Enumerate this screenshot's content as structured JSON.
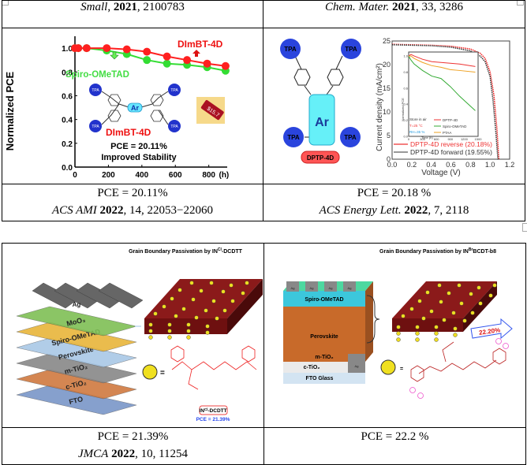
{
  "table1": {
    "header": [
      {
        "journal": "Small",
        "year": "2021",
        "rest": ", 2100783",
        "sep": ", "
      },
      {
        "journal": "Chem. Mater.",
        "year": "2021",
        "rest": ", 33, 3286",
        "sep": " "
      }
    ],
    "footer": [
      {
        "pce": "PCE = 20.11%",
        "journal": "ACS AMI",
        "year": "2022",
        "rest": ", 14, 22053−22060"
      },
      {
        "pce": "PCE = 20.18 %",
        "journal": "ACS Energy Lett.",
        "year": "2022",
        "rest": ", 7, 2118"
      }
    ]
  },
  "table2": {
    "footer": [
      {
        "pce": "PCE = 21.39%",
        "journal": "JMCA",
        "year": "2022",
        "rest": ", 10, 11254"
      },
      {
        "pce": "PCE = 22.2 %"
      }
    ]
  },
  "fig1": {
    "ylabel": "Normalized PCE",
    "series_labels": {
      "dimbt": "DImBT-4D",
      "spiro": "Spiro-OMeTAD"
    },
    "molecule_label": "DImBT-4D",
    "core_label": "Ar",
    "group_label": "TPA",
    "pce_text": "PCE = 20.11%",
    "stability_text": "Improved Stability",
    "price_tag": "$15.7",
    "colors": {
      "dimbt": "#ff2020",
      "spiro": "#33dd33"
    }
  },
  "fig2": {
    "group_label": "TPA",
    "core_label": "Ar",
    "molecule_badge": "DPTP-4D",
    "xlabel": "Voltage (V)",
    "ylabel": "Current density (mA/cm²)",
    "legend": [
      "DPTP-4D reverse (20.18%)",
      "DPTP-4D forward (19.55%)"
    ],
    "inset": {
      "ylabel": "Normalized PCE",
      "xlabel": "Time (h)",
      "conditions": [
        "Store in air",
        "T=25 °C",
        "RH=35 %"
      ],
      "legend": [
        "DPTP-4D",
        "Spiro-OMeTAD",
        "PTAA"
      ]
    }
  },
  "fig3": {
    "title": "Grain Boundary Passivation by IN",
    "title_sup": "Cl",
    "title_tail": "-DCDTT",
    "layers": [
      "Ag",
      "MoO₃",
      "Spiro-OMeTAD",
      "Perovskite",
      "m-TiO₂",
      "c-TiO₂",
      "FTO"
    ],
    "molecule_label": "IN",
    "molecule_sup": "Cl",
    "molecule_tail": "-DCDTT",
    "pce_text": "PCE = 21.39%",
    "equals": "="
  },
  "fig4": {
    "title": "Grain Boundary Passivation by IN",
    "title_sup": "Br",
    "title_tail": "BCDT-b8",
    "layers": [
      "Ag",
      "Spiro-OMeTAD",
      "Perovskite",
      "m-TiO₂",
      "c-TiO₂",
      "FTO Glass"
    ],
    "electrode": "Ag",
    "arrow_text": "22.20%",
    "equals": "="
  },
  "chart_data": [
    {
      "type": "line",
      "title": "",
      "xlabel": "(h)",
      "ylabel": "Normalized PCE",
      "x": [
        0,
        20,
        70,
        190,
        310,
        430,
        550,
        670,
        790,
        900
      ],
      "xlim": [
        0,
        910
      ],
      "ylim": [
        0,
        1.1
      ],
      "xticks": [
        0,
        200,
        400,
        600,
        800
      ],
      "yticks": [
        0.0,
        0.2,
        0.4,
        0.6,
        0.8,
        1.0
      ],
      "series": [
        {
          "name": "DImBT-4D",
          "values": [
            1.0,
            1.0,
            1.0,
            1.0,
            0.99,
            0.97,
            0.93,
            0.9,
            0.87,
            0.85
          ]
        },
        {
          "name": "Spiro-OMeTAD",
          "values": [
            1.0,
            1.0,
            1.0,
            0.98,
            0.95,
            0.9,
            0.87,
            0.86,
            0.84,
            0.81
          ]
        }
      ],
      "legend": "inline"
    },
    {
      "type": "line",
      "xlabel": "Voltage (V)",
      "ylabel": "Current density (mA/cm²)",
      "xlim": [
        0,
        1.2
      ],
      "ylim": [
        0,
        25
      ],
      "xticks": [
        0.0,
        0.2,
        0.4,
        0.6,
        0.8,
        1.0,
        1.2
      ],
      "yticks": [
        0,
        5,
        10,
        15,
        20,
        25
      ],
      "series": [
        {
          "name": "DPTP-4D reverse (20.18%)",
          "x": [
            0,
            0.2,
            0.4,
            0.6,
            0.8,
            0.9,
            0.95,
            1.0,
            1.04,
            1.07,
            1.09
          ],
          "values": [
            24.3,
            24.2,
            24.1,
            23.9,
            23.3,
            22.4,
            21.3,
            18.5,
            13.5,
            6.5,
            0
          ]
        },
        {
          "name": "DPTP-4D forward (19.55%)",
          "x": [
            0,
            0.2,
            0.4,
            0.6,
            0.8,
            0.9,
            0.95,
            1.0,
            1.03,
            1.06,
            1.08
          ],
          "values": [
            24.2,
            24.1,
            24.0,
            23.7,
            22.9,
            21.8,
            20.6,
            17.5,
            12.5,
            5.5,
            0
          ]
        }
      ],
      "legend": "bottom-left"
    },
    {
      "type": "line",
      "title": "inset",
      "xlabel": "Time (h)",
      "ylabel": "Normalized PCE",
      "xlim": [
        0,
        1500
      ],
      "ylim": [
        0,
        1.05
      ],
      "xticks": [
        0,
        300,
        600,
        900,
        1200,
        1500
      ],
      "yticks": [
        0.0,
        0.2,
        0.4,
        0.6,
        0.8,
        1.0
      ],
      "series": [
        {
          "name": "DPTP-4D",
          "x": [
            0,
            50,
            120,
            300,
            500,
            700,
            900,
            1100,
            1440
          ],
          "values": [
            1.0,
            1.02,
            1.0,
            0.96,
            0.93,
            0.92,
            0.91,
            0.9,
            0.87
          ]
        },
        {
          "name": "Spiro-OMeTAD",
          "x": [
            0,
            50,
            120,
            300,
            500,
            700,
            900,
            1100,
            1440
          ],
          "values": [
            1.0,
            0.95,
            0.9,
            0.82,
            0.75,
            0.72,
            0.62,
            0.5,
            0.32
          ]
        },
        {
          "name": "PTAA",
          "x": [
            0,
            50,
            120,
            300,
            500,
            700,
            900,
            1100,
            1440
          ],
          "values": [
            1.0,
            1.0,
            0.97,
            0.92,
            0.88,
            0.86,
            0.83,
            0.82,
            0.8
          ]
        }
      ],
      "legend": "bottom-right"
    }
  ]
}
